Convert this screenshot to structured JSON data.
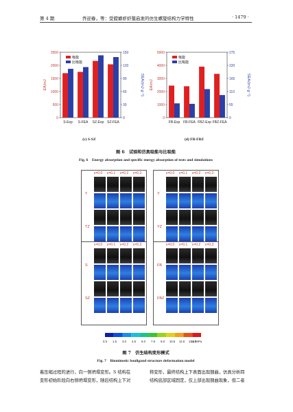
{
  "header": {
    "left": "第 4 期",
    "center": "乔迎春，等：受螳螂虾虾螯启发的仿生螺旋结构力学特性",
    "right": "· 1479 ·"
  },
  "fig6": {
    "caption_cn": "图 6　试验和仿真吸能与比吸能",
    "caption_en": "Fig. 6　Energy absorption and specific energy absorption of tests and simulations",
    "sub_c": "(c) S-SZ",
    "sub_d": "(d) FB-FBZ",
    "legend_ea": "吸能",
    "legend_sea": "比吸能",
    "colors": {
      "ea": "#e02020",
      "sea": "#2a3fa8"
    }
  },
  "chart_data": [
    {
      "type": "bar",
      "categories": [
        "S-Exp",
        "S-FEA",
        "SZ-Exp",
        "SZ-FEA"
      ],
      "series": [
        {
          "name": "吸能",
          "values": [
            1700,
            1750,
            2170,
            2040
          ]
        },
        {
          "name": "比吸能",
          "values": [
            112,
            116,
            143,
            139
          ]
        }
      ],
      "ylabel": "EA/mJ",
      "y2label": "SEA/(mJ·g⁻¹)",
      "ylim": [
        0,
        2500
      ],
      "y2lim": [
        0,
        150
      ],
      "yticks": [
        "0",
        "500",
        "1000",
        "1500",
        "2000",
        "2500"
      ],
      "y2ticks": [
        "0",
        "30",
        "60",
        "90",
        "120",
        "150"
      ],
      "legend": "top-left"
    },
    {
      "type": "bar",
      "categories": [
        "FB-Exp",
        "FB-FEA",
        "FBZ-Exp",
        "FBZ-FEA"
      ],
      "series": [
        {
          "name": "吸能",
          "values": [
            2450,
            2400,
            3900,
            3350
          ]
        },
        {
          "name": "比吸能",
          "values": [
            60,
            58,
            120,
            95
          ]
        }
      ],
      "ylabel": "EA/mJ",
      "y2label": "SEA/(mJ·g⁻¹)",
      "ylim": [
        0,
        5000
      ],
      "y2lim": [
        0,
        275
      ],
      "yticks": [
        "0",
        "1000",
        "2000",
        "3000",
        "4000",
        "5000"
      ],
      "y2ticks": [
        "0",
        "55",
        "110",
        "165",
        "220",
        "275"
      ],
      "legend": "top-left"
    }
  ],
  "fig7": {
    "strain_labels": [
      "ε=0.0",
      "ε=0.1",
      "ε=0.2",
      "ε=0.3"
    ],
    "row_labels_left": [
      "T",
      "TZ",
      "S",
      "SZ"
    ],
    "row_labels_right": [
      "Y",
      "YZ",
      "FB",
      "FBZ"
    ],
    "colorbar_ticks": [
      "0.0",
      "1.5",
      "3.0",
      "4.5",
      "6.0",
      "7.5",
      "9.0",
      "10.5",
      "12.0",
      "13.5",
      "15.0"
    ],
    "colorbar_unit": "/MPa",
    "caption_cn": "图 7　仿生结构变形模式",
    "caption_en": "Fig. 7　Biomimetic bouligand structure deformation model"
  },
  "body": {
    "left_col": [
      "着压缩过程的进行，向一侧坍塌变形。S 结构在",
      "变形初始阶段向右侧坍塌变形，随后结构上下对"
    ],
    "right_col": [
      "称变形，最终结构上下表面出现翘曲，仿真分析四",
      "结构底部区域固定，仅上部出现翘曲现象，但二者"
    ]
  }
}
